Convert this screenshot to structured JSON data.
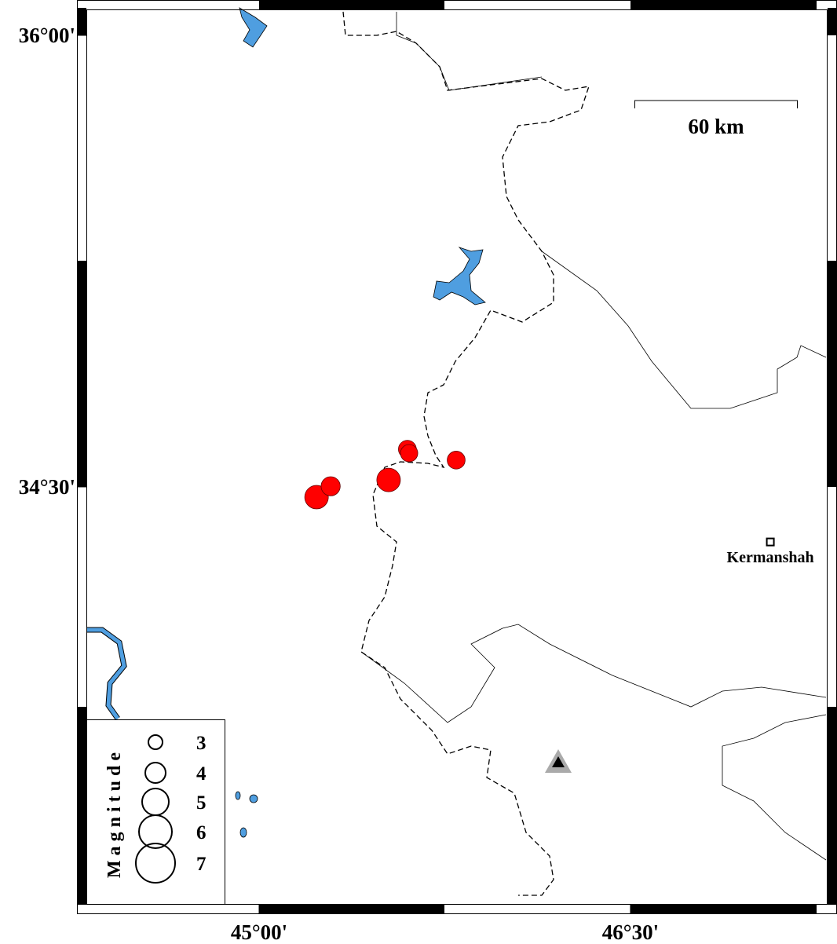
{
  "map": {
    "lat_ticks": [
      {
        "value": 36.0,
        "label": "36°00'"
      },
      {
        "value": 34.5,
        "label": "34°30'"
      }
    ],
    "lon_ticks": [
      {
        "value": 45.0,
        "label": "45°00'"
      },
      {
        "value": 46.5,
        "label": "46°30'"
      }
    ],
    "scale_bar": {
      "label": "60 km"
    },
    "city": {
      "name": "Kermanshah",
      "lon": 47.065,
      "lat": 34.317
    },
    "events": [
      {
        "lon": 45.232,
        "lat": 34.466,
        "magnitude": 4.5
      },
      {
        "lon": 45.289,
        "lat": 34.502,
        "magnitude": 3.8
      },
      {
        "lon": 45.523,
        "lat": 34.523,
        "magnitude": 4.5
      },
      {
        "lon": 45.599,
        "lat": 34.625,
        "magnitude": 3.6
      },
      {
        "lon": 45.606,
        "lat": 34.612,
        "magnitude": 3.5
      },
      {
        "lon": 45.796,
        "lat": 34.589,
        "magnitude": 3.6
      }
    ],
    "legend": {
      "title": "Magnitude",
      "magnitudes": [
        3,
        4,
        5,
        6,
        7
      ]
    }
  }
}
